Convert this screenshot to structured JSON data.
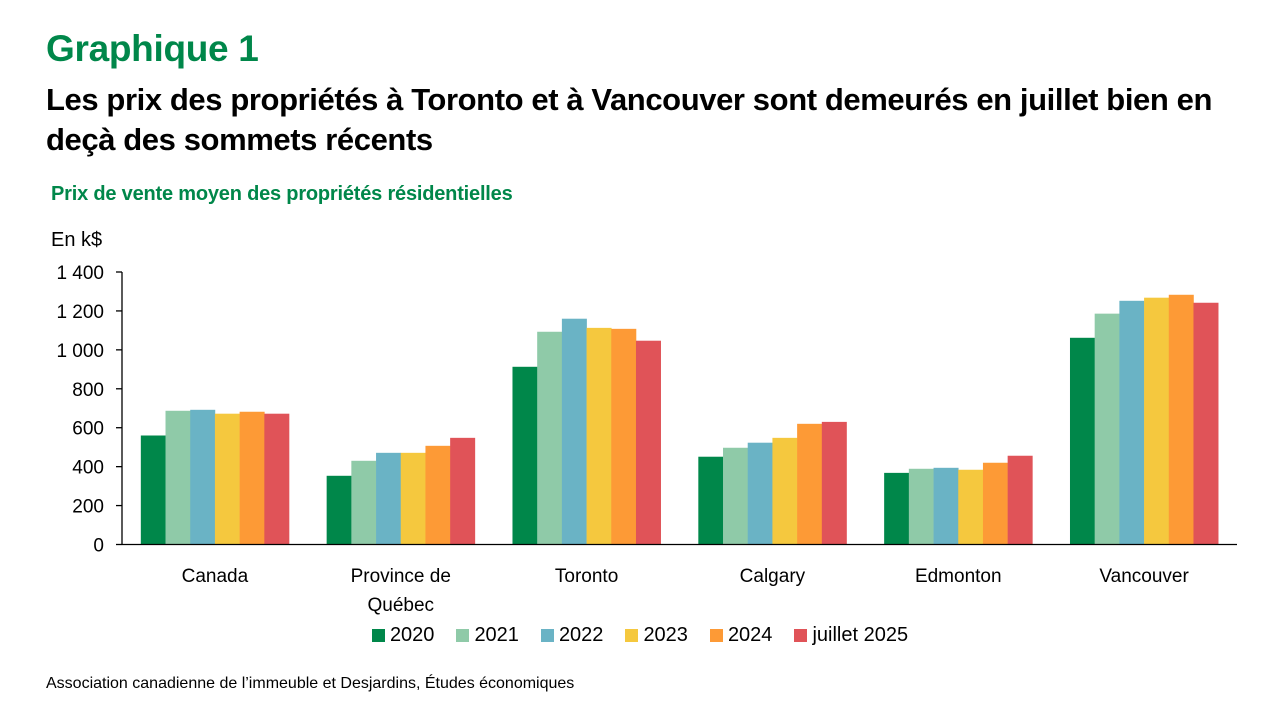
{
  "header": {
    "figure_number": "Graphique 1",
    "title": "Les prix des propriétés à Toronto et à Vancouver sont demeurés en juillet bien en deçà des sommets récents",
    "subtitle": "Prix de vente moyen des propriétés résidentielles",
    "unit_label": "En k$"
  },
  "source": "Association canadienne de l’immeuble et Desjardins, Études économiques",
  "chart_data": {
    "type": "bar",
    "title": "Prix de vente moyen des propriétés résidentielles",
    "xlabel": "",
    "ylabel": "En k$",
    "ylim": [
      0,
      1400
    ],
    "yticks": [
      0,
      200,
      400,
      600,
      800,
      1000,
      1200,
      1400
    ],
    "ytick_labels": [
      "0",
      "200",
      "400",
      "600",
      "800",
      "1 000",
      "1 200",
      "1 400"
    ],
    "grid": false,
    "legend_position": "bottom",
    "categories": [
      [
        "Canada"
      ],
      [
        "Province de",
        "Québec"
      ],
      [
        "Toronto"
      ],
      [
        "Calgary"
      ],
      [
        "Edmonton"
      ],
      [
        "Vancouver"
      ]
    ],
    "series": [
      {
        "name": "2020",
        "color": "#00874A",
        "values": [
          560,
          353,
          913,
          451,
          368,
          1062
        ]
      },
      {
        "name": "2021",
        "color": "#8FCAA8",
        "values": [
          687,
          430,
          1093,
          497,
          389,
          1186
        ]
      },
      {
        "name": "2022",
        "color": "#6AB3C5",
        "values": [
          692,
          471,
          1160,
          523,
          394,
          1252
        ]
      },
      {
        "name": "2023",
        "color": "#F5C83E",
        "values": [
          672,
          471,
          1113,
          548,
          384,
          1268
        ]
      },
      {
        "name": "2024",
        "color": "#FD9A36",
        "values": [
          682,
          507,
          1108,
          620,
          420,
          1283
        ]
      },
      {
        "name": "juillet 2025",
        "color": "#E05358",
        "values": [
          672,
          548,
          1047,
          630,
          456,
          1242
        ]
      }
    ]
  }
}
